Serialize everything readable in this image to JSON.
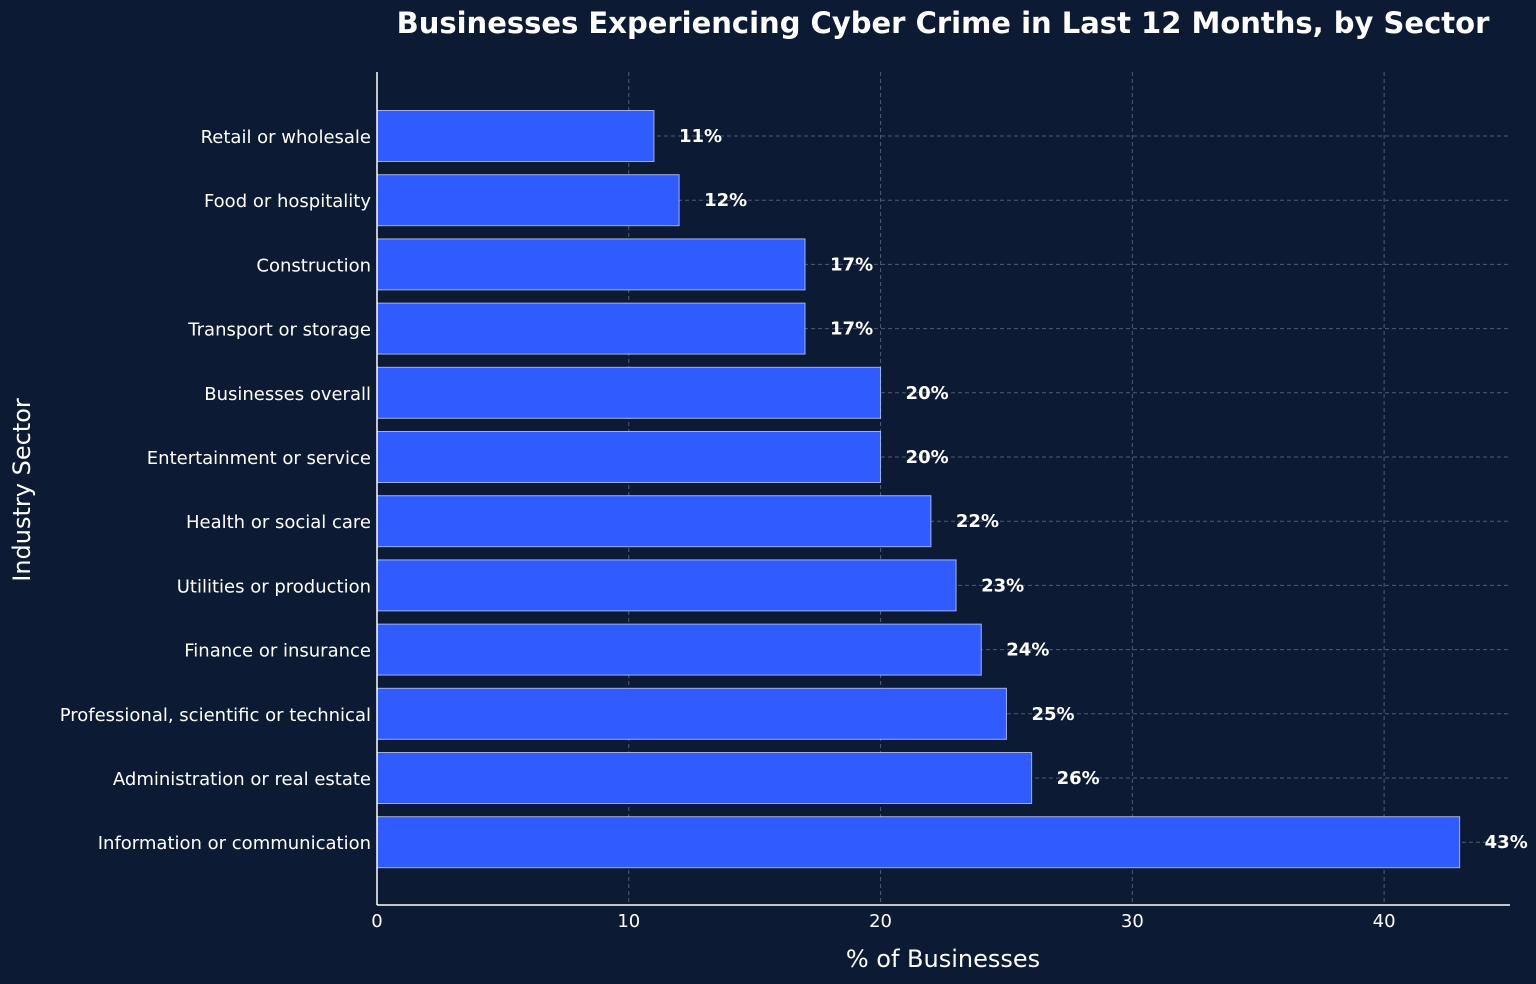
{
  "chart_data": {
    "type": "bar",
    "orientation": "horizontal",
    "title": "Businesses Experiencing Cyber Crime in Last 12 Months, by Sector",
    "xlabel": "% of Businesses",
    "ylabel": "Industry Sector",
    "xlim": [
      0,
      45
    ],
    "xticks": [
      0,
      10,
      20,
      30,
      40
    ],
    "grid": true,
    "categories": [
      "Retail or wholesale",
      "Food or hospitality",
      "Construction",
      "Transport or storage",
      "Businesses overall",
      "Entertainment or service",
      "Health or social care",
      "Utilities or production",
      "Finance or insurance",
      "Professional, scientific or technical",
      "Administration or real estate",
      "Information or communication"
    ],
    "values": [
      11,
      12,
      17,
      17,
      20,
      20,
      22,
      23,
      24,
      25,
      26,
      43
    ],
    "value_labels": [
      "11%",
      "12%",
      "17%",
      "17%",
      "20%",
      "20%",
      "22%",
      "23%",
      "24%",
      "25%",
      "26%",
      "43%"
    ],
    "colors": {
      "background": "#0c1a33",
      "bar": "#2f5bff",
      "text": "#ffffff"
    }
  }
}
